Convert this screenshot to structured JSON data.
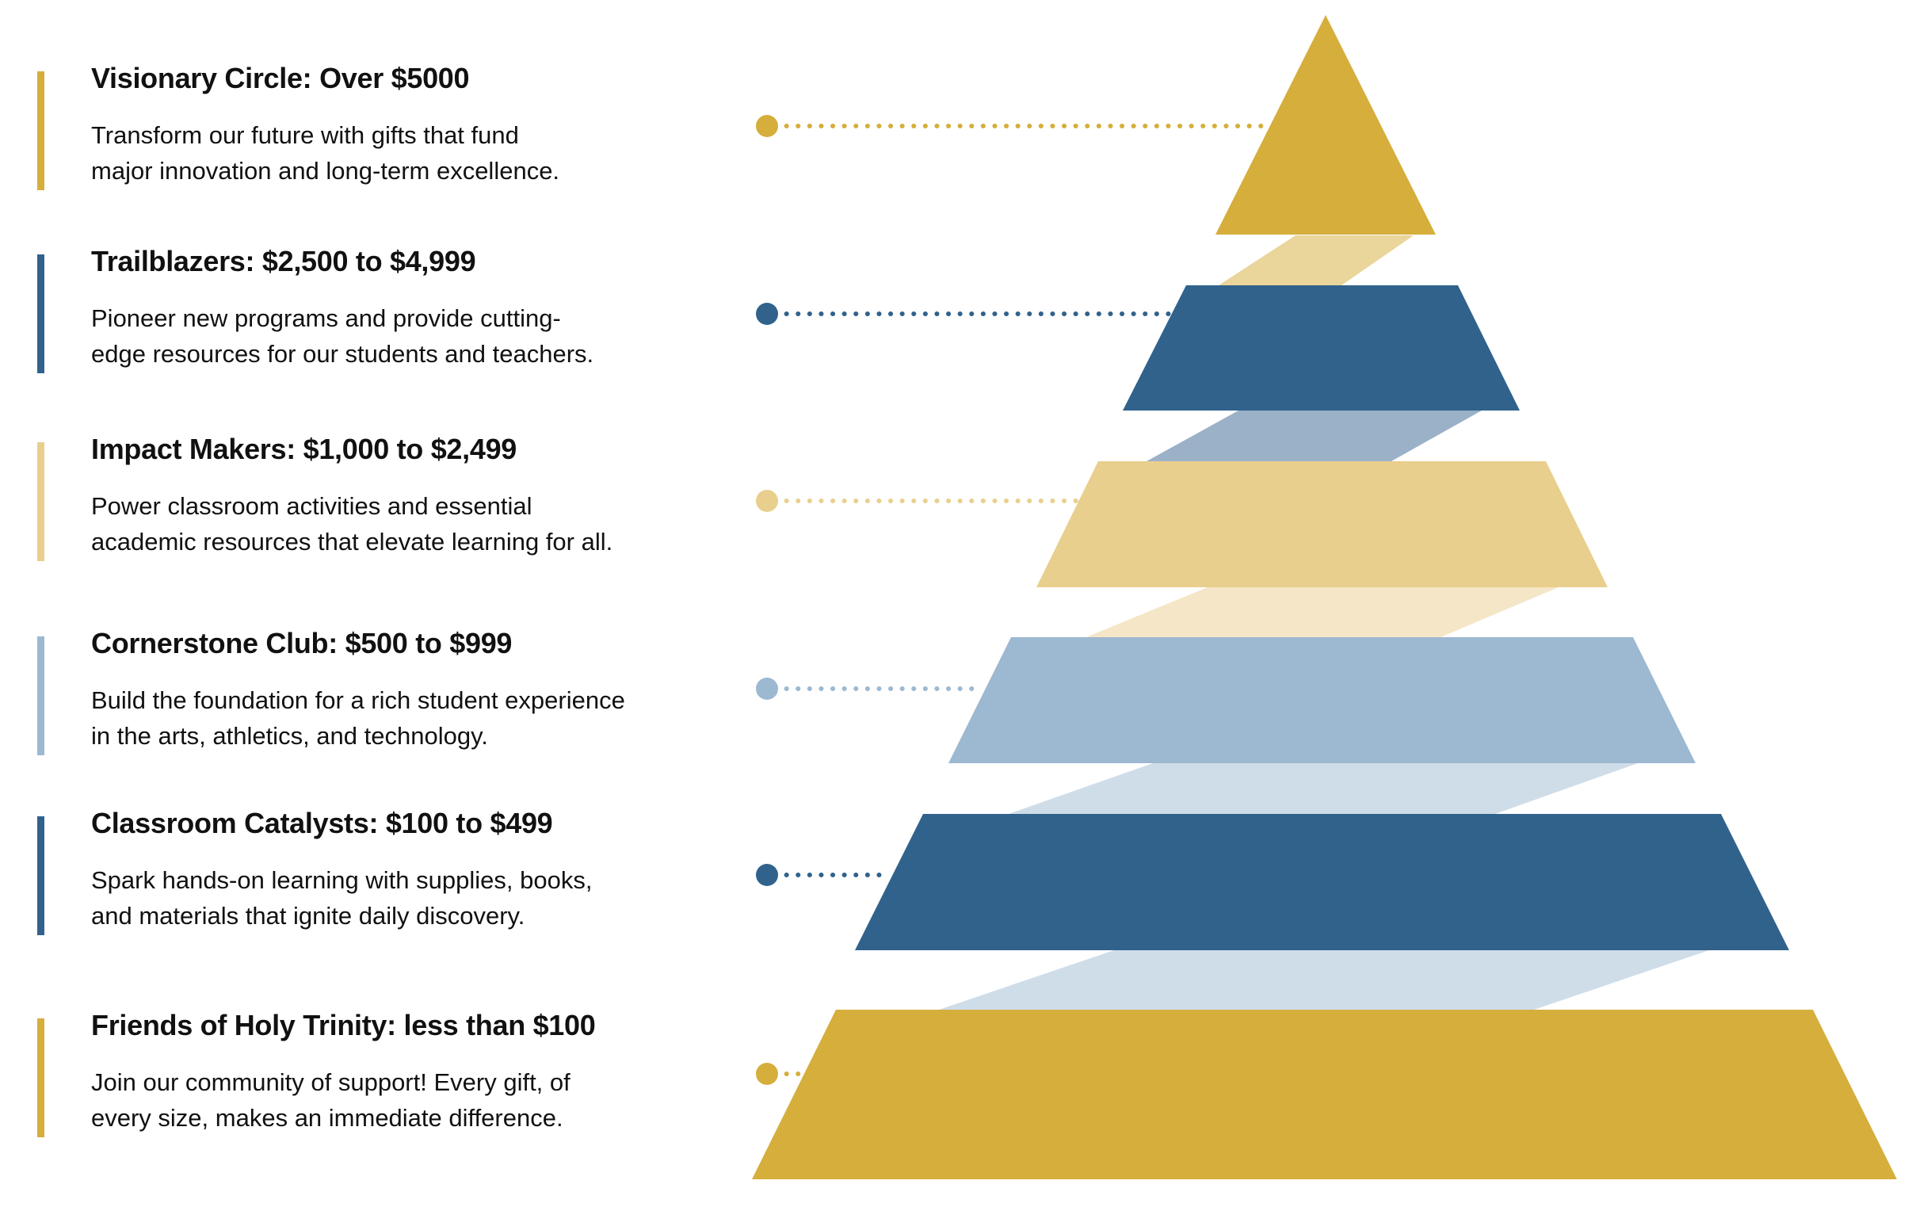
{
  "colors": {
    "gold": "#d5ae3c",
    "dark_blue": "#31628c",
    "light_gold": "#e9cf8d",
    "light_blue": "#9db8d1",
    "connector_gold": "#ead59b",
    "connector_slate": "#9bb1c8",
    "connector_cream": "#f4e6c6",
    "connector_pale_blue": "#cfdde9"
  },
  "tiers": [
    {
      "heading": "Visionary Circle: Over $5000",
      "lines": [
        "Transform our future with gifts that fund",
        "major innovation and long-term excellence."
      ],
      "color": "#d5ae3c"
    },
    {
      "heading": "Trailblazers: $2,500 to  $4,999",
      "lines": [
        "Pioneer new programs and provide cutting-",
        "edge resources for our students and teachers."
      ],
      "color": "#31628c"
    },
    {
      "heading": "Impact Makers: $1,000 to $2,499",
      "lines": [
        "Power classroom activities and essential",
        "academic resources that elevate learning for all."
      ],
      "color": "#e9cf8d"
    },
    {
      "heading": "Cornerstone Club: $500 to $999",
      "lines": [
        "Build the foundation for a rich student experience",
        "in the arts, athletics, and technology."
      ],
      "color": "#9db8d1"
    },
    {
      "heading": "Classroom Catalysts: $100 to $499",
      "lines": [
        "Spark hands-on learning with supplies, books,",
        "and materials that ignite daily discovery."
      ],
      "color": "#31628c"
    },
    {
      "heading": "Friends of Holy Trinity: less than $100",
      "lines": [
        "Join our community of support! Every gift, of",
        "every size, makes an immediate difference."
      ],
      "color": "#d5ae3c"
    }
  ]
}
